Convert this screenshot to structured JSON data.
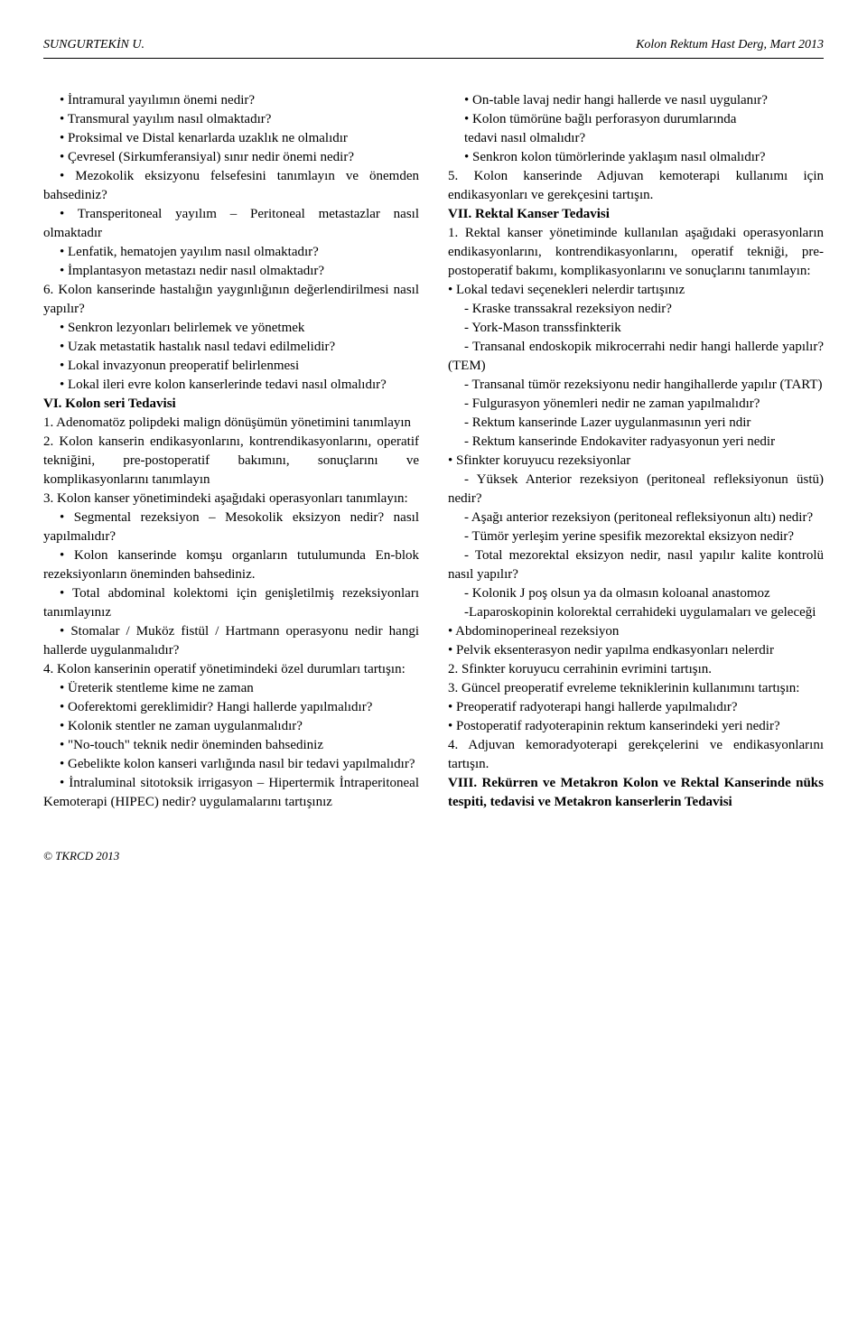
{
  "header": {
    "left": "SUNGURTEKİN U.",
    "right": "Kolon Rektum Hast Derg, Mart 2013"
  },
  "left_column": [
    {
      "text": "• İntramural yayılımın önemi nedir?",
      "indent": true
    },
    {
      "text": "• Transmural yayılım nasıl olmaktadır?",
      "indent": true
    },
    {
      "text": "• Proksimal ve Distal kenarlarda uzaklık ne olmalıdır",
      "indent": true
    },
    {
      "text": "• Çevresel (Sirkumferansiyal) sınır nedir önemi nedir?",
      "indent": true
    },
    {
      "text": "• Mezokolik eksizyonu felsefesini tanımlayın ve önemden bahsediniz?",
      "indent": true
    },
    {
      "text": "• Transperitoneal yayılım – Peritoneal metastazlar nasıl olmaktadır",
      "indent": true
    },
    {
      "text": "• Lenfatik, hematojen yayılım nasıl olmaktadır?",
      "indent": true
    },
    {
      "text": "• İmplantasyon metastazı nedir nasıl olmaktadır?",
      "indent": true
    },
    {
      "text": "6. Kolon kanserinde hastalığın yaygınlığının değerlendirilmesi nasıl yapılır?"
    },
    {
      "text": "• Senkron lezyonları belirlemek ve yönetmek",
      "indent": true
    },
    {
      "text": "• Uzak metastatik hastalık nasıl tedavi edilmelidir?",
      "indent": true
    },
    {
      "text": "• Lokal invazyonun preoperatif belirlenmesi",
      "indent": true
    },
    {
      "text": "• Lokal ileri evre kolon kanserlerinde tedavi nasıl olmalıdır?",
      "indent": true
    },
    {
      "text": "VI. Kolon seri Tedavisi",
      "bold": true
    },
    {
      "text": "1. Adenomatöz polipdeki malign dönüşümün yönetimini tanımlayın"
    },
    {
      "text": "2. Kolon kanserin endikasyonlarını, kontrendikasyonlarını, operatif tekniğini, pre-postoperatif bakımını, sonuçlarını ve komplikasyonlarını tanımlayın"
    },
    {
      "text": "3. Kolon kanser yönetimindeki aşağıdaki operasyonları tanımlayın:"
    },
    {
      "text": "• Segmental rezeksiyon – Mesokolik eksizyon nedir? nasıl yapılmalıdır?",
      "indent": true
    },
    {
      "text": "• Kolon kanserinde komşu organların tutulumunda En-blok rezeksiyonların öneminden bahsediniz.",
      "indent": true
    },
    {
      "text": "• Total abdominal kolektomi için genişletilmiş rezeksiyonları tanımlayınız",
      "indent": true
    },
    {
      "text": "• Stomalar / Muköz fistül / Hartmann operasyonu nedir hangi hallerde uygulanmalıdır?",
      "indent": true
    },
    {
      "text": "4. Kolon kanserinin operatif yönetimindeki özel durumları tartışın:"
    },
    {
      "text": "• Üreterik stentleme kime ne zaman",
      "indent": true
    },
    {
      "text": "• Ooferektomi gereklimidir? Hangi hallerde yapılmalıdır?",
      "indent": true
    },
    {
      "text": "• Kolonik stentler ne zaman uygulanmalıdır?",
      "indent": true
    },
    {
      "text": "• \"No-touch\" teknik nedir öneminden bahsediniz",
      "indent": true
    },
    {
      "text": "• Gebelikte kolon kanseri varlığında nasıl bir tedavi yapılmalıdır?",
      "indent": true
    },
    {
      "text": "• İntraluminal sitotoksik irrigasyon – Hipertermik İntraperitoneal Kemoterapi (HIPEC) nedir? uygulamalarını tartışınız",
      "indent": true
    },
    {
      "text": "• On-table lavaj nedir hangi hallerde ve nasıl uygulanır?",
      "indent": true
    },
    {
      "text": "• Kolon tümörüne bağlı perforasyon durumlarında",
      "indent": true
    }
  ],
  "right_column": [
    {
      "text": "tedavi nasıl olmalıdır?",
      "indent": true
    },
    {
      "text": "• Senkron kolon tümörlerinde yaklaşım nasıl olmalıdır?",
      "indent": true
    },
    {
      "text": "5. Kolon kanserinde Adjuvan kemoterapi kullanımı için endikasyonları ve gerekçesini tartışın."
    },
    {
      "text": "VII. Rektal Kanser Tedavisi",
      "bold": true
    },
    {
      "text": "1. Rektal kanser yönetiminde kullanılan aşağıdaki operasyonların endikasyonlarını, kontrendikasyonlarını, operatif tekniği, pre-postoperatif bakımı, komplikasyonlarını ve sonuçlarını tanımlayın:"
    },
    {
      "text": "• Lokal tedavi seçenekleri nelerdir tartışınız"
    },
    {
      "text": "- Kraske transsakral rezeksiyon nedir?",
      "indent": true
    },
    {
      "text": "- York-Mason transsfinkterik",
      "indent": true
    },
    {
      "text": "- Transanal endoskopik mikrocerrahi nedir hangi hallerde yapılır? (TEM)",
      "indent": true
    },
    {
      "text": "- Transanal tümör rezeksiyonu nedir hangihallerde yapılır (TART)",
      "indent": true
    },
    {
      "text": "- Fulgurasyon yönemleri nedir ne zaman yapılmalıdır?",
      "indent": true
    },
    {
      "text": "- Rektum kanserinde Lazer uygulanmasının yeri ndir",
      "indent": true
    },
    {
      "text": "- Rektum kanserinde Endokaviter radyasyonun yeri nedir",
      "indent": true
    },
    {
      "text": "• Sfinkter koruyucu rezeksiyonlar"
    },
    {
      "text": "- Yüksek Anterior rezeksiyon (peritoneal refleksiyonun üstü) nedir?",
      "indent": true
    },
    {
      "text": "- Aşağı anterior rezeksiyon (peritoneal refleksiyonun altı) nedir?",
      "indent": true
    },
    {
      "text": "- Tümör yerleşim yerine spesifik mezorektal eksizyon nedir?",
      "indent": true
    },
    {
      "text": "- Total mezorektal eksizyon nedir, nasıl yapılır kalite kontrolü nasıl yapılır?",
      "indent": true
    },
    {
      "text": "- Kolonik J poş olsun ya da olmasın koloanal anastomoz",
      "indent": true
    },
    {
      "text": "-Laparoskopinin kolorektal cerrahideki uygulamaları ve geleceği",
      "indent": true
    },
    {
      "text": "• Abdominoperineal rezeksiyon"
    },
    {
      "text": "• Pelvik eksenterasyon nedir yapılma endkasyonları nelerdir"
    },
    {
      "text": "2. Sfinkter koruyucu cerrahinin evrimini tartışın."
    },
    {
      "text": "3. Güncel preoperatif evreleme tekniklerinin kullanımını tartışın:"
    },
    {
      "text": "• Preoperatif radyoterapi hangi hallerde yapılmalıdır?"
    },
    {
      "text": "• Postoperatif radyoterapinin rektum kanserindeki yeri nedir?"
    },
    {
      "text": "4. Adjuvan kemoradyoterapi gerekçelerini ve endikasyonlarını tartışın."
    },
    {
      "text": "VIII. Rekürren ve Metakron Kolon ve Rektal Kanserinde nüks tespiti, tedavisi ve Metakron kanserlerin Tedavisi",
      "bold": true
    }
  ],
  "footer": "© TKRCD 2013"
}
